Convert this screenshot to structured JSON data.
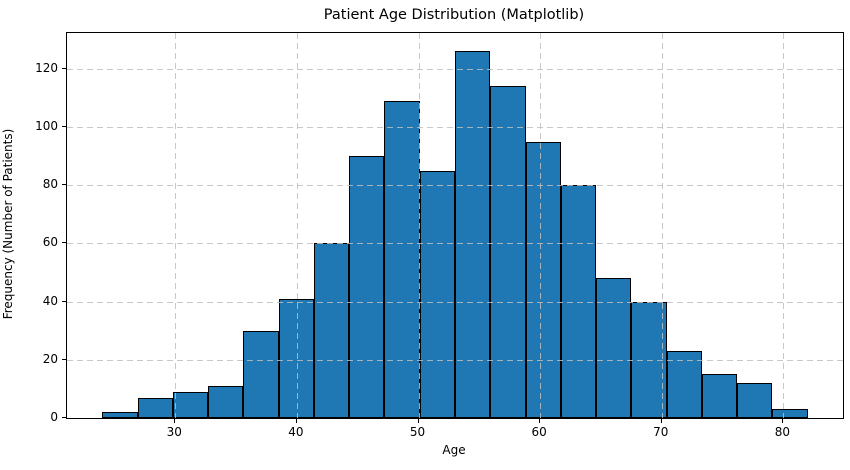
{
  "chart_data": {
    "type": "bar",
    "subtype": "histogram",
    "title": "Patient Age Distribution (Matplotlib)",
    "xlabel": "Age",
    "ylabel": "Frequency (Number of Patients)",
    "bin_start": 24,
    "bin_width": 2.9,
    "bin_edges": [
      24,
      26.9,
      29.8,
      32.7,
      35.6,
      38.5,
      41.4,
      44.3,
      47.2,
      50.1,
      53,
      55.9,
      58.8,
      61.7,
      64.6,
      67.5,
      70.4,
      73.3,
      76.2,
      79.1,
      82
    ],
    "values": [
      2,
      7,
      9,
      11,
      30,
      41,
      60,
      90,
      109,
      85,
      126,
      114,
      95,
      80,
      48,
      40,
      23,
      15,
      12,
      3
    ],
    "total_count": 1000,
    "xlim": [
      21.1,
      84.9
    ],
    "ylim": [
      0,
      132.3
    ],
    "xticks": [
      30,
      40,
      50,
      60,
      70,
      80
    ],
    "yticks": [
      0,
      20,
      40,
      60,
      80,
      100,
      120
    ],
    "grid": true,
    "grid_style": "dashed",
    "legend_position": "none",
    "bar_color": "#1f77b4",
    "bar_edge_color": "#000000",
    "grid_color": "#bebebe",
    "spine_color": "#000000",
    "background_color": "#ffffff"
  }
}
